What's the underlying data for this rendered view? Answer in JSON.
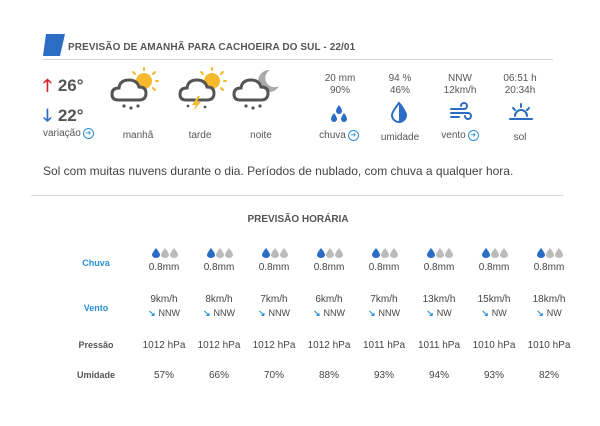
{
  "header": {
    "title": "PREVISÃO DE AMANHÃ PARA CACHOEIRA DO SUL - 22/01",
    "accent_color": "#2b6cc4"
  },
  "temperature": {
    "max": "26°",
    "min": "22°",
    "variation_label": "variação",
    "max_color": "#d8232a",
    "min_color": "#2b6cc4"
  },
  "periods": [
    {
      "label": "manhã",
      "icon": "cloud-sun-rain-icon"
    },
    {
      "label": "tarde",
      "icon": "cloud-sun-storm-icon"
    },
    {
      "label": "noite",
      "icon": "cloud-moon-rain-icon"
    }
  ],
  "stats": {
    "rain": {
      "line1": "20 mm",
      "line2": "90%",
      "label": "chuva",
      "icon": "raindrops-icon"
    },
    "humidity": {
      "line1": "94 %",
      "line2": "46%",
      "label": "umidade",
      "icon": "humidity-drop-icon"
    },
    "wind": {
      "line1": "NNW",
      "line2": "12km/h",
      "label": "vento",
      "icon": "wind-icon"
    },
    "sun": {
      "line1": "06:51 h",
      "line2": "20:34h",
      "label": "sol",
      "icon": "sunrise-icon"
    }
  },
  "description": "Sol com muitas nuvens durante o dia. Períodos de nublado, com chuva a qualquer hora.",
  "hourly": {
    "title": "PREVISÃO HORÁRIA",
    "row_labels": {
      "rain": "Chuva",
      "wind": "Vento",
      "pressure": "Pressão",
      "humidity": "Umidade"
    },
    "columns": [
      {
        "rain": "0.8mm",
        "wind_speed": "9km/h",
        "wind_dir": "NNW",
        "pressure": "1012 hPa",
        "humidity": "57%"
      },
      {
        "rain": "0.8mm",
        "wind_speed": "8km/h",
        "wind_dir": "NNW",
        "pressure": "1012 hPa",
        "humidity": "66%"
      },
      {
        "rain": "0.8mm",
        "wind_speed": "7km/h",
        "wind_dir": "NNW",
        "pressure": "1012 hPa",
        "humidity": "70%"
      },
      {
        "rain": "0.8mm",
        "wind_speed": "6km/h",
        "wind_dir": "NNW",
        "pressure": "1012 hPa",
        "humidity": "88%"
      },
      {
        "rain": "0.8mm",
        "wind_speed": "7km/h",
        "wind_dir": "NNW",
        "pressure": "1011 hPa",
        "humidity": "93%"
      },
      {
        "rain": "0.8mm",
        "wind_speed": "13km/h",
        "wind_dir": "NW",
        "pressure": "1011 hPa",
        "humidity": "94%"
      },
      {
        "rain": "0.8mm",
        "wind_speed": "15km/h",
        "wind_dir": "NW",
        "pressure": "1010 hPa",
        "humidity": "93%"
      },
      {
        "rain": "0.8mm",
        "wind_speed": "18km/h",
        "wind_dir": "NW",
        "pressure": "1010 hPa",
        "humidity": "82%"
      }
    ]
  }
}
